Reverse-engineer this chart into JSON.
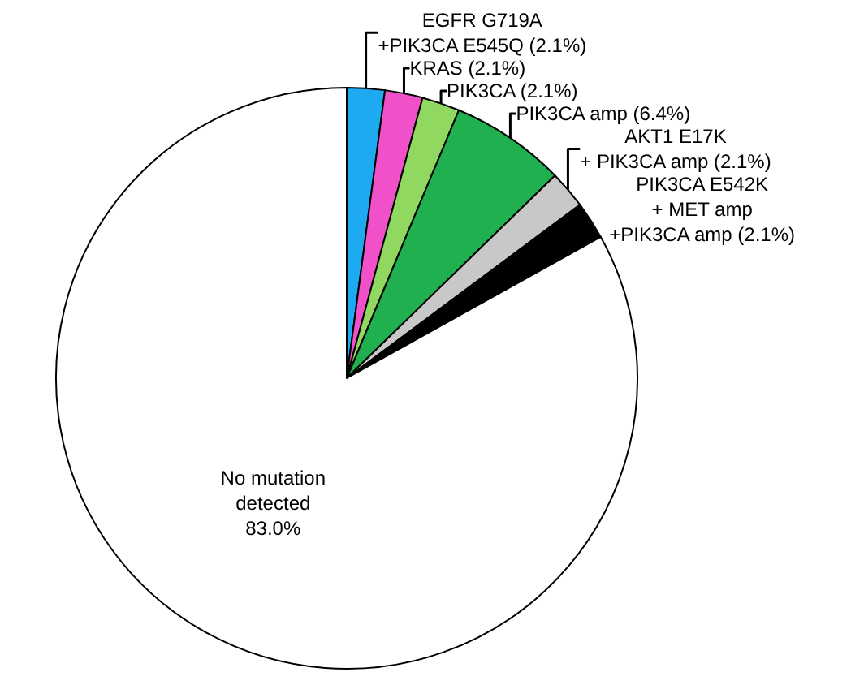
{
  "chart_data": {
    "type": "pie",
    "categories": [
      "EGFR G719A\n+PIK3CA E545Q",
      "KRAS",
      "PIK3CA",
      "PIK3CA amp",
      "AKT1 E17K\n+ PIK3CA amp",
      "PIK3CA E542K\n+ MET amp\n+PIK3CA amp",
      "No mutation\ndetected"
    ],
    "values": [
      2.1,
      2.1,
      2.1,
      6.4,
      2.1,
      2.1,
      83.0
    ],
    "value_labels": [
      "(2.1%)",
      "(2.1%)",
      "(2.1%)",
      "(6.4%)",
      "(2.1%)",
      "(2.1%)",
      "83.0%"
    ],
    "colors": [
      "#1eaaf0",
      "#f050c8",
      "#90d860",
      "#20b050",
      "#c8c8c8",
      "#000000",
      "#ffffff"
    ],
    "legend": false
  }
}
